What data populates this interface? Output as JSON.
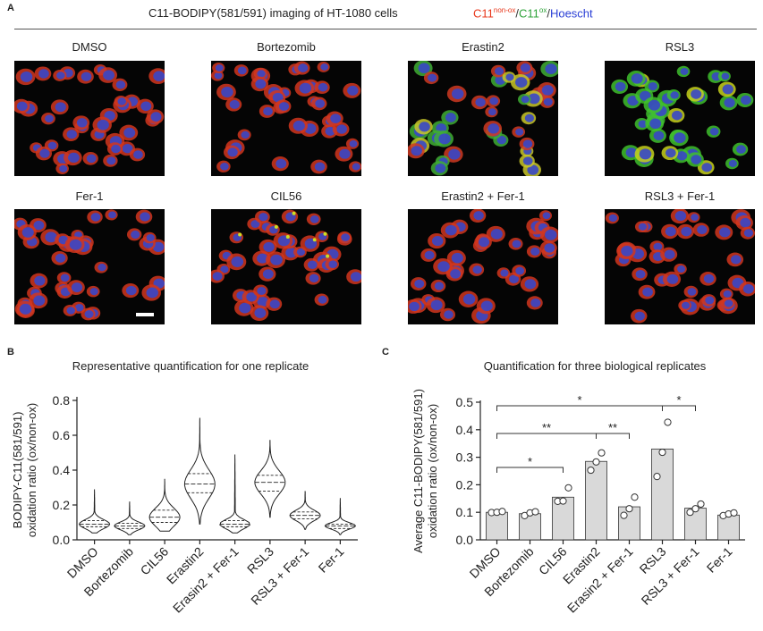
{
  "panel_a": {
    "letter": "A",
    "title": "C11-BODIPY(581/591) imaging of HT-1080 cells",
    "legend": [
      {
        "text": "C11",
        "sup": "non-ox",
        "color": "#e8381c"
      },
      {
        "text": "/",
        "color": "#333333"
      },
      {
        "text": "C11",
        "sup": "ox",
        "color": "#2fa33a"
      },
      {
        "text": "/",
        "color": "#333333"
      },
      {
        "text": "Hoescht",
        "color": "#2a3fd6"
      }
    ],
    "images": [
      {
        "label": "DMSO",
        "style": "red"
      },
      {
        "label": "Bortezomib",
        "style": "red"
      },
      {
        "label": "Erastin2",
        "style": "mixed"
      },
      {
        "label": "RSL3",
        "style": "green"
      },
      {
        "label": "Fer-1",
        "style": "red"
      },
      {
        "label": "CIL56",
        "style": "red-speckled"
      },
      {
        "label": "Erastin2 + Fer-1",
        "style": "red"
      },
      {
        "label": "RSL3 + Fer-1",
        "style": "red"
      }
    ]
  },
  "panel_b": {
    "letter": "B"
  },
  "panel_c": {
    "letter": "C"
  },
  "chart_data": [
    {
      "type": "violin",
      "title": "Representative quantification for one replicate",
      "ylabel_line1": "BODIPY-C11(581/591)",
      "ylabel_line2": "oxidation ratio (ox/non-ox)",
      "ylim": [
        0,
        0.8
      ],
      "yticks": [
        "0.0",
        "0.2",
        "0.4",
        "0.6",
        "0.8"
      ],
      "categories": [
        "DMSO",
        "Bortezomib",
        "CIL56",
        "Erastin2",
        "Erasin2 + Fer-1",
        "RSL3",
        "RSL3 + Fer-1",
        "Fer-1"
      ],
      "violins": [
        {
          "min": 0.04,
          "q1": 0.075,
          "median": 0.09,
          "q3": 0.11,
          "max": 0.29
        },
        {
          "min": 0.03,
          "q1": 0.065,
          "median": 0.08,
          "q3": 0.095,
          "max": 0.22
        },
        {
          "min": 0.05,
          "q1": 0.1,
          "median": 0.13,
          "q3": 0.17,
          "max": 0.35
        },
        {
          "min": 0.09,
          "q1": 0.27,
          "median": 0.32,
          "q3": 0.38,
          "max": 0.7
        },
        {
          "min": 0.04,
          "q1": 0.075,
          "median": 0.09,
          "q3": 0.11,
          "max": 0.49
        },
        {
          "min": 0.13,
          "q1": 0.28,
          "median": 0.33,
          "q3": 0.37,
          "max": 0.57
        },
        {
          "min": 0.06,
          "q1": 0.12,
          "median": 0.14,
          "q3": 0.16,
          "max": 0.28
        },
        {
          "min": 0.03,
          "q1": 0.065,
          "median": 0.08,
          "q3": 0.09,
          "max": 0.24
        }
      ]
    },
    {
      "type": "bar",
      "title": "Quantification for three biological replicates",
      "ylabel_line1": "Average C11-BODIPY(581/591)",
      "ylabel_line2": "oxidation ratio (ox/non-ox)",
      "ylim": [
        0,
        0.5
      ],
      "yticks": [
        "0.0",
        "0.1",
        "0.2",
        "0.3",
        "0.4",
        "0.5"
      ],
      "categories": [
        "DMSO",
        "Bortezomib",
        "CIL56",
        "Erastin2",
        "Erasin2 + Fer-1",
        "RSL3",
        "RSL3 + Fer-1",
        "Fer-1"
      ],
      "values": [
        0.1,
        0.095,
        0.155,
        0.285,
        0.12,
        0.33,
        0.115,
        0.09
      ],
      "points": [
        [
          0.099,
          0.1,
          0.103
        ],
        [
          0.088,
          0.098,
          0.102
        ],
        [
          0.14,
          0.141,
          0.189
        ],
        [
          0.253,
          0.283,
          0.316
        ],
        [
          0.089,
          0.113,
          0.155
        ],
        [
          0.23,
          0.318,
          0.427
        ],
        [
          0.1,
          0.113,
          0.13
        ],
        [
          0.088,
          0.094,
          0.098
        ]
      ],
      "significance": [
        {
          "from": 0,
          "to": 2,
          "label": "*"
        },
        {
          "from": 0,
          "to": 3,
          "label": "**"
        },
        {
          "from": 3,
          "to": 4,
          "label": "**"
        },
        {
          "from": 0,
          "to": 5,
          "label": "*"
        },
        {
          "from": 5,
          "to": 6,
          "label": "*"
        }
      ]
    }
  ]
}
